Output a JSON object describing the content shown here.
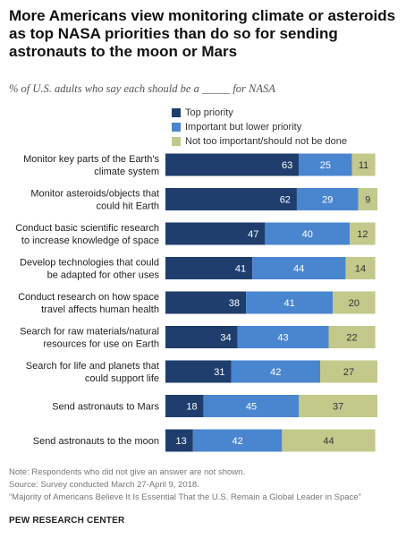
{
  "title": "More Americans view monitoring climate or asteroids as top NASA priorities than do so for sending astronauts to the moon or Mars",
  "subtitle": "% of U.S. adults who say each should be a _____ for NASA",
  "colors": {
    "top_priority": "#1f3e6e",
    "important_lower": "#4a86d0",
    "not_important": "#c3c98a"
  },
  "chart_data": {
    "type": "bar",
    "orientation": "horizontal",
    "stacked": true,
    "categories": [
      [
        "Monitor key parts of the Earth's",
        "climate system"
      ],
      [
        "Monitor asteroids/objects that",
        "could hit Earth"
      ],
      [
        "Conduct basic scientific research",
        "to increase knowledge of space"
      ],
      [
        "Develop technologies that could",
        "be adapted for other uses"
      ],
      [
        "Conduct research on how space",
        "travel affects human health"
      ],
      [
        "Search for raw materials/natural",
        "resources for use on Earth"
      ],
      [
        "Search for life and planets that",
        "could support life"
      ],
      [
        "Send astronauts to Mars"
      ],
      [
        "Send astronauts to the moon"
      ]
    ],
    "series": [
      {
        "name": "Top priority",
        "values": [
          63,
          62,
          47,
          41,
          38,
          34,
          31,
          18,
          13
        ]
      },
      {
        "name": "Important but lower priority",
        "values": [
          25,
          29,
          40,
          44,
          41,
          43,
          42,
          45,
          42
        ]
      },
      {
        "name": "Not too important/should not be done",
        "values": [
          11,
          9,
          12,
          14,
          20,
          22,
          27,
          37,
          44
        ]
      }
    ],
    "xlim": [
      0,
      100
    ],
    "legend": "top",
    "grid": false
  },
  "footer": {
    "note": "Note: Respondents who did not give an answer are not shown.",
    "source": "Source: Survey conducted March 27-April 9, 2018.",
    "report": "“Majority of Americans Believe It Is Essential That the U.S. Remain a Global Leader in Space”",
    "brand": "PEW RESEARCH CENTER"
  }
}
